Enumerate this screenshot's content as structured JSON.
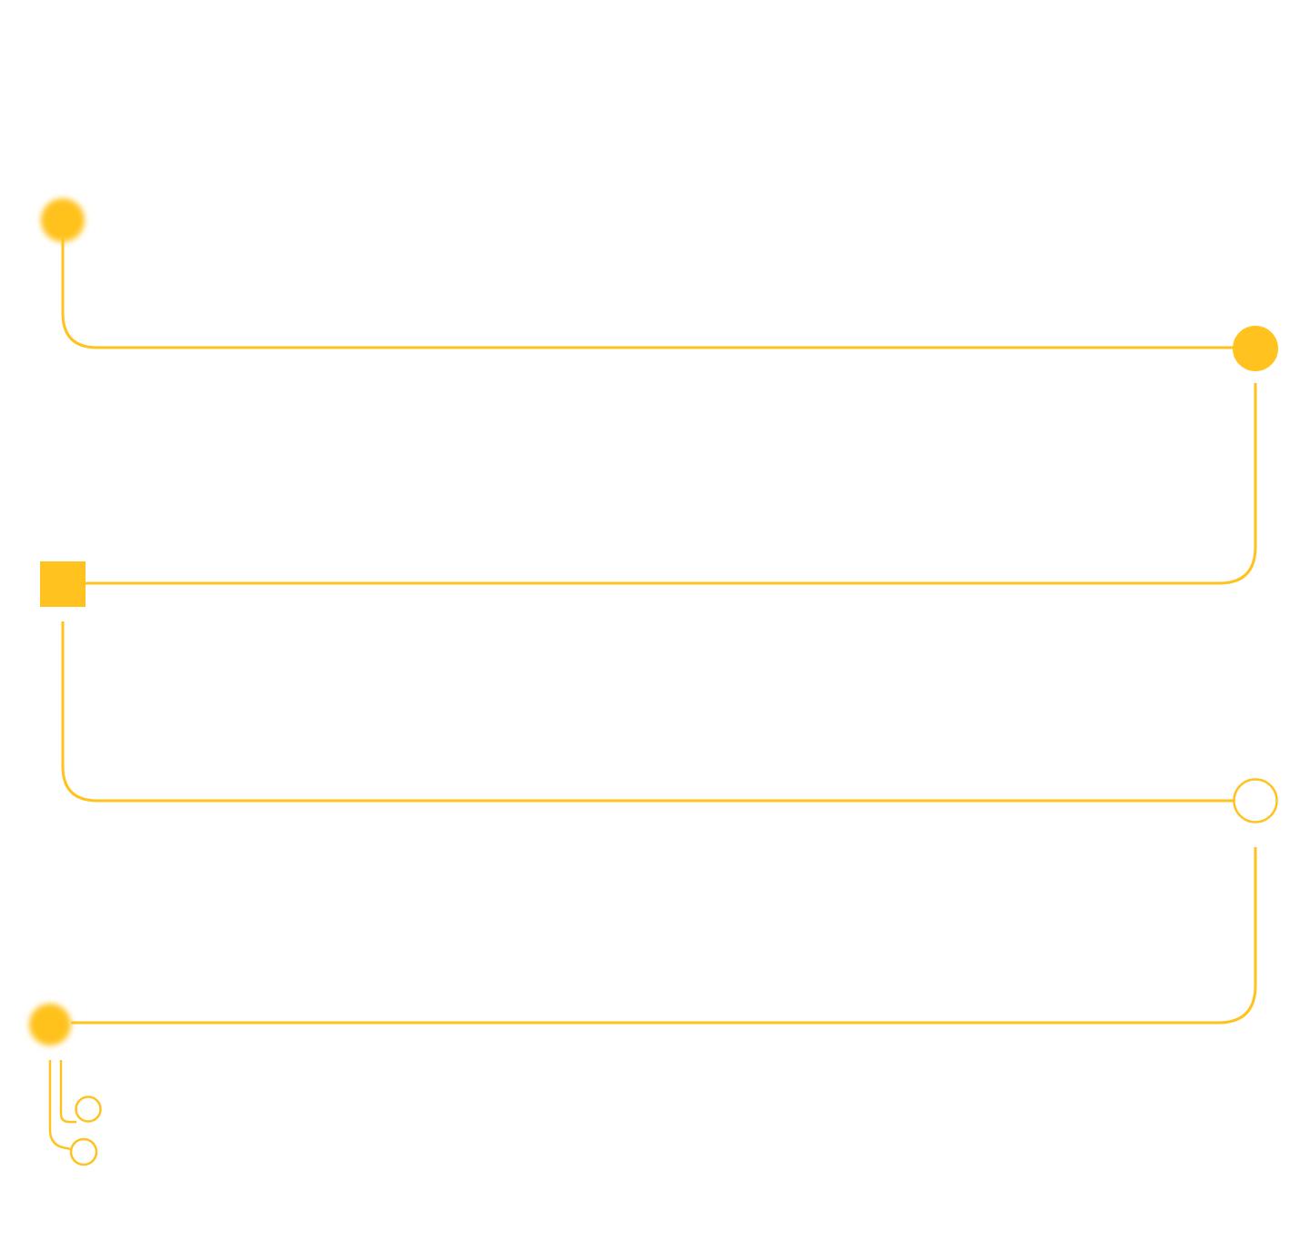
{
  "colors": {
    "background": "#ffffff",
    "accent": "#FFC21F"
  },
  "diagram": {
    "kind": "zigzag-timeline",
    "segments": [
      {
        "from": "node-1",
        "to": "node-2",
        "style": "solid-line"
      },
      {
        "from": "node-2",
        "to": "node-3",
        "style": "solid-line"
      },
      {
        "from": "node-3",
        "to": "node-4",
        "style": "solid-line"
      },
      {
        "from": "node-4",
        "to": "node-5",
        "style": "solid-line"
      },
      {
        "from": "node-5",
        "to": "branch-end-1",
        "style": "thin-line"
      },
      {
        "from": "node-5",
        "to": "branch-end-2",
        "style": "thin-line"
      }
    ],
    "nodes": [
      {
        "id": "node-1",
        "marker": "glow-dot"
      },
      {
        "id": "node-2",
        "marker": "filled-circle"
      },
      {
        "id": "node-3",
        "marker": "filled-square"
      },
      {
        "id": "node-4",
        "marker": "hollow-circle"
      },
      {
        "id": "node-5",
        "marker": "glow-dot"
      },
      {
        "id": "branch-end-1",
        "marker": "small-hollow-circle"
      },
      {
        "id": "branch-end-2",
        "marker": "small-hollow-circle"
      }
    ]
  }
}
